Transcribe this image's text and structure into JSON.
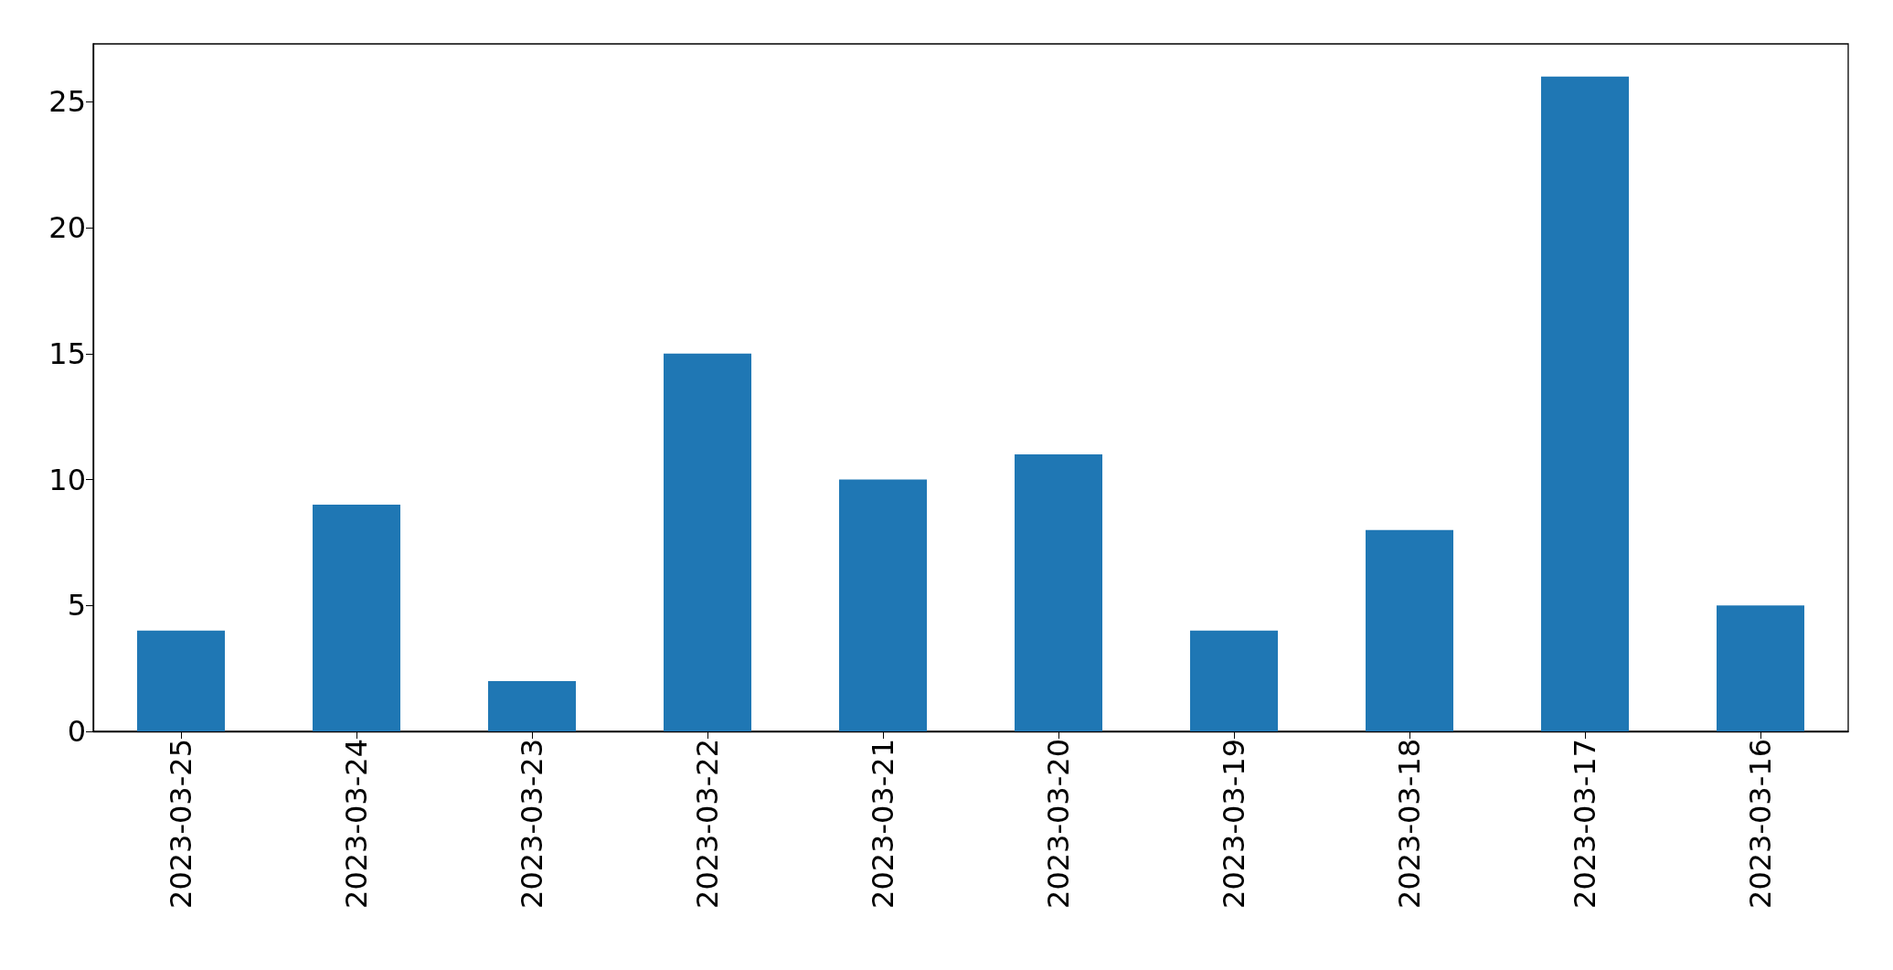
{
  "chart_data": {
    "type": "bar",
    "categories": [
      "2023-03-25",
      "2023-03-24",
      "2023-03-23",
      "2023-03-22",
      "2023-03-21",
      "2023-03-20",
      "2023-03-19",
      "2023-03-18",
      "2023-03-17",
      "2023-03-16"
    ],
    "values": [
      4,
      9,
      2,
      15,
      10,
      11,
      4,
      8,
      26,
      5
    ],
    "color": "#1f77b4",
    "ylim": [
      0,
      27.3
    ],
    "yticks": [
      0,
      5,
      10,
      15,
      20,
      25
    ],
    "grid": false
  }
}
